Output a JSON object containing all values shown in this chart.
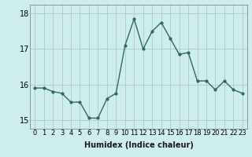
{
  "x": [
    0,
    1,
    2,
    3,
    4,
    5,
    6,
    7,
    8,
    9,
    10,
    11,
    12,
    13,
    14,
    15,
    16,
    17,
    18,
    19,
    20,
    21,
    22,
    23
  ],
  "y": [
    15.9,
    15.9,
    15.8,
    15.75,
    15.5,
    15.5,
    15.05,
    15.05,
    15.6,
    15.75,
    17.1,
    17.85,
    17.0,
    17.5,
    17.75,
    17.3,
    16.85,
    16.9,
    16.1,
    16.1,
    15.85,
    16.1,
    15.85,
    15.75
  ],
  "line_color": "#2e6b5e",
  "marker": "o",
  "markersize": 2,
  "linewidth": 1.0,
  "background_color": "#ceeeed",
  "grid_color": "#b0c8c8",
  "xlabel": "Humidex (Indice chaleur)",
  "ylabel": "",
  "title": "",
  "ylim": [
    14.75,
    18.25
  ],
  "xlim": [
    -0.5,
    23.5
  ],
  "yticks": [
    15,
    16,
    17,
    18
  ],
  "xtick_labels": [
    "0",
    "1",
    "2",
    "3",
    "4",
    "5",
    "6",
    "7",
    "8",
    "9",
    "10",
    "11",
    "12",
    "13",
    "14",
    "15",
    "16",
    "17",
    "18",
    "19",
    "20",
    "21",
    "22",
    "23"
  ],
  "xlabel_fontsize": 7,
  "tick_fontsize": 6,
  "ytick_fontsize": 7
}
